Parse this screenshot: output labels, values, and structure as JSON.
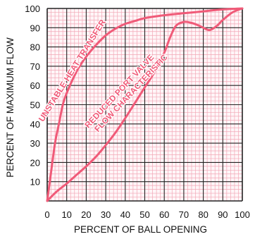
{
  "chart_data": {
    "type": "line",
    "title": "",
    "xlabel": "PERCENT OF BALL OPENING",
    "ylabel": "PERCENT OF MAXIMUM FLOW",
    "xlim": [
      0,
      100
    ],
    "ylim": [
      0,
      100
    ],
    "x_ticks": [
      "0",
      "10",
      "20",
      "30",
      "40",
      "50",
      "60",
      "70",
      "80",
      "90",
      "100"
    ],
    "y_ticks": [
      "10",
      "20",
      "30",
      "40",
      "50",
      "60",
      "70",
      "80",
      "90",
      "100"
    ],
    "grid": true,
    "colors": {
      "curve": "#f05a78",
      "major_grid": "#222222",
      "minor_grid": "#f2a7b6",
      "background": "#fff6f8"
    },
    "series": [
      {
        "x": [
          0,
          2,
          4,
          6,
          8,
          10,
          13,
          16,
          20,
          25,
          30,
          35,
          40,
          45,
          50,
          60,
          70,
          80,
          90,
          100
        ],
        "y": [
          0,
          15,
          30,
          40,
          50,
          56,
          63,
          69,
          75,
          81,
          86,
          89.5,
          92,
          93.5,
          95,
          96.5,
          97.5,
          98.5,
          99.5,
          100
        ]
      },
      {
        "x": [
          0,
          5,
          10,
          15,
          20,
          25,
          30,
          35,
          40,
          45,
          50,
          55,
          60,
          63,
          66,
          70,
          74,
          78,
          82,
          84,
          87,
          90,
          95,
          100
        ],
        "y": [
          0,
          5,
          9,
          13.5,
          18,
          23,
          29,
          35.5,
          43,
          51,
          59,
          67,
          77,
          85,
          91,
          93,
          92.5,
          91,
          89,
          89,
          91,
          94,
          98,
          100
        ]
      }
    ],
    "annotations": [
      {
        "text": "UNSTABLE HEAT TRANSFER",
        "x": 14,
        "y": 67,
        "angle": -58
      },
      {
        "text": "REDUCED PORT VALVE",
        "x": 38,
        "y": 56,
        "angle": -47
      },
      {
        "text": "FLOW CHARACTERISTIC",
        "x": 44,
        "y": 55,
        "angle": -47
      }
    ]
  }
}
